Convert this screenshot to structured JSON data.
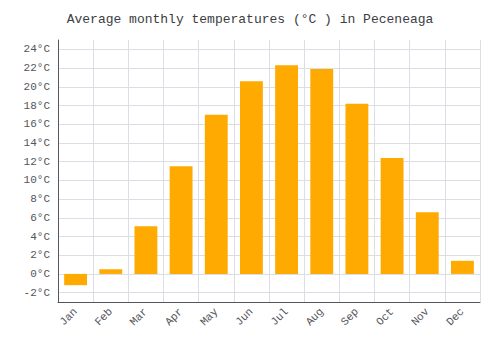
{
  "chart_data": {
    "type": "bar",
    "title": "Average monthly temperatures (°C ) in Peceneaga",
    "categories": [
      "Jan",
      "Feb",
      "Mar",
      "Apr",
      "May",
      "Jun",
      "Jul",
      "Aug",
      "Sep",
      "Oct",
      "Nov",
      "Dec"
    ],
    "values": [
      -1.2,
      0.5,
      5.1,
      11.5,
      17.0,
      20.6,
      22.3,
      21.9,
      18.2,
      12.4,
      6.6,
      1.4
    ],
    "color": "#FFAA00",
    "ylim": [
      -3,
      25
    ],
    "yticks": [
      {
        "value": -2,
        "label": "-2°C"
      },
      {
        "value": 0,
        "label": "0°C"
      },
      {
        "value": 2,
        "label": "2°C"
      },
      {
        "value": 4,
        "label": "4°C"
      },
      {
        "value": 6,
        "label": "6°C"
      },
      {
        "value": 8,
        "label": "8°C"
      },
      {
        "value": 10,
        "label": "10°C"
      },
      {
        "value": 12,
        "label": "12°C"
      },
      {
        "value": 14,
        "label": "14°C"
      },
      {
        "value": 16,
        "label": "16°C"
      },
      {
        "value": 18,
        "label": "18°C"
      },
      {
        "value": 20,
        "label": "20°C"
      },
      {
        "value": 22,
        "label": "22°C"
      },
      {
        "value": 24,
        "label": "24°C"
      }
    ],
    "grid": true
  }
}
